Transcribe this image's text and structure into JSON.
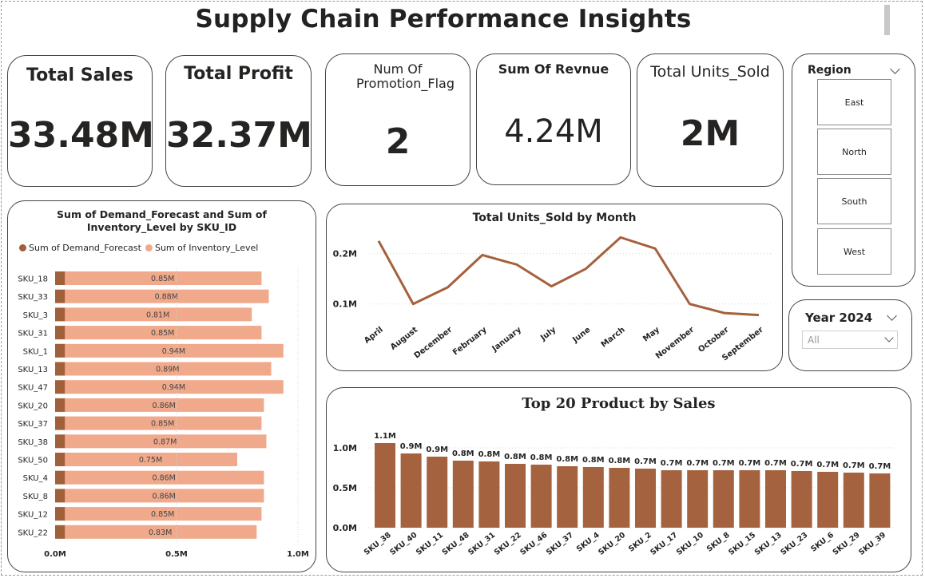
{
  "header": {
    "title": "Supply Chain Performance Insights"
  },
  "kpis": {
    "total_sales": {
      "label": "Total Sales",
      "value": "33.48M"
    },
    "total_profit": {
      "label": "Total Profit",
      "value": "32.37M"
    },
    "promotion": {
      "label": "Num Of Promotion_Flag",
      "value": "2"
    },
    "revenue": {
      "label": "Sum Of Revnue",
      "value": "4.24M"
    },
    "units_sold": {
      "label": "Total Units_Sold",
      "value": "2M"
    }
  },
  "region_slicer": {
    "title": "Region",
    "options": [
      "East",
      "North",
      "South",
      "West"
    ]
  },
  "year_slicer": {
    "title": "Year 2024",
    "selected": "All"
  },
  "colors": {
    "demand": "#a0603a",
    "inventory": "#f0a98a",
    "line": "#a5603c",
    "bar": "#a5623f"
  },
  "chart_data": [
    {
      "type": "bar",
      "orientation": "horizontal",
      "title": "Sum of Demand_Forecast and Sum of Inventory_Level by SKU_ID",
      "categories": [
        "SKU_18",
        "SKU_33",
        "SKU_3",
        "SKU_31",
        "SKU_1",
        "SKU_13",
        "SKU_47",
        "SKU_20",
        "SKU_37",
        "SKU_38",
        "SKU_50",
        "SKU_4",
        "SKU_8",
        "SKU_12",
        "SKU_22"
      ],
      "series": [
        {
          "name": "Sum of Demand_Forecast",
          "values": [
            0.04,
            0.04,
            0.04,
            0.04,
            0.04,
            0.04,
            0.04,
            0.04,
            0.04,
            0.04,
            0.04,
            0.04,
            0.04,
            0.04,
            0.04
          ]
        },
        {
          "name": "Sum of Inventory_Level",
          "values": [
            0.85,
            0.88,
            0.81,
            0.85,
            0.94,
            0.89,
            0.94,
            0.86,
            0.85,
            0.87,
            0.75,
            0.86,
            0.86,
            0.85,
            0.83
          ]
        }
      ],
      "data_labels": [
        "0.85M",
        "0.88M",
        "0.81M",
        "0.85M",
        "0.94M",
        "0.89M",
        "0.94M",
        "0.86M",
        "0.85M",
        "0.87M",
        "0.75M",
        "0.86M",
        "0.86M",
        "0.85M",
        "0.83M"
      ],
      "xticks": [
        "0.0M",
        "0.5M",
        "1.0M"
      ],
      "xlim": [
        0,
        1.0
      ],
      "legend": "top-left"
    },
    {
      "type": "line",
      "title": "Total Units_Sold by Month",
      "x": [
        "April",
        "August",
        "December",
        "February",
        "January",
        "July",
        "June",
        "March",
        "May",
        "November",
        "October",
        "September"
      ],
      "y": [
        0.225,
        0.1,
        0.133,
        0.197,
        0.178,
        0.135,
        0.17,
        0.232,
        0.21,
        0.1,
        0.082,
        0.078
      ],
      "yticks": [
        "0.1M",
        "0.2M"
      ],
      "ylim": [
        0.06,
        0.25
      ],
      "grid": true
    },
    {
      "type": "bar",
      "title": "Top 20 Product by Sales",
      "categories": [
        "SKU_38",
        "SKU_40",
        "SKU_11",
        "SKU_48",
        "SKU_31",
        "SKU_22",
        "SKU_46",
        "SKU_37",
        "SKU_4",
        "SKU_20",
        "SKU_2",
        "SKU_17",
        "SKU_10",
        "SKU_8",
        "SKU_15",
        "SKU_13",
        "SKU_23",
        "SKU_6",
        "SKU_29",
        "SKU_39"
      ],
      "values": [
        1.06,
        0.93,
        0.89,
        0.84,
        0.83,
        0.8,
        0.79,
        0.77,
        0.76,
        0.75,
        0.74,
        0.72,
        0.72,
        0.72,
        0.72,
        0.72,
        0.71,
        0.7,
        0.69,
        0.68
      ],
      "data_labels": [
        "1.1M",
        "0.9M",
        "0.9M",
        "0.8M",
        "0.8M",
        "0.8M",
        "0.8M",
        "0.8M",
        "0.8M",
        "0.8M",
        "0.7M",
        "0.7M",
        "0.7M",
        "0.7M",
        "0.7M",
        "0.7M",
        "0.7M",
        "0.7M",
        "0.7M",
        "0.7M"
      ],
      "yticks": [
        "0.0M",
        "0.5M",
        "1.0M"
      ],
      "ylim": [
        0,
        1.1
      ],
      "grid": true
    }
  ]
}
